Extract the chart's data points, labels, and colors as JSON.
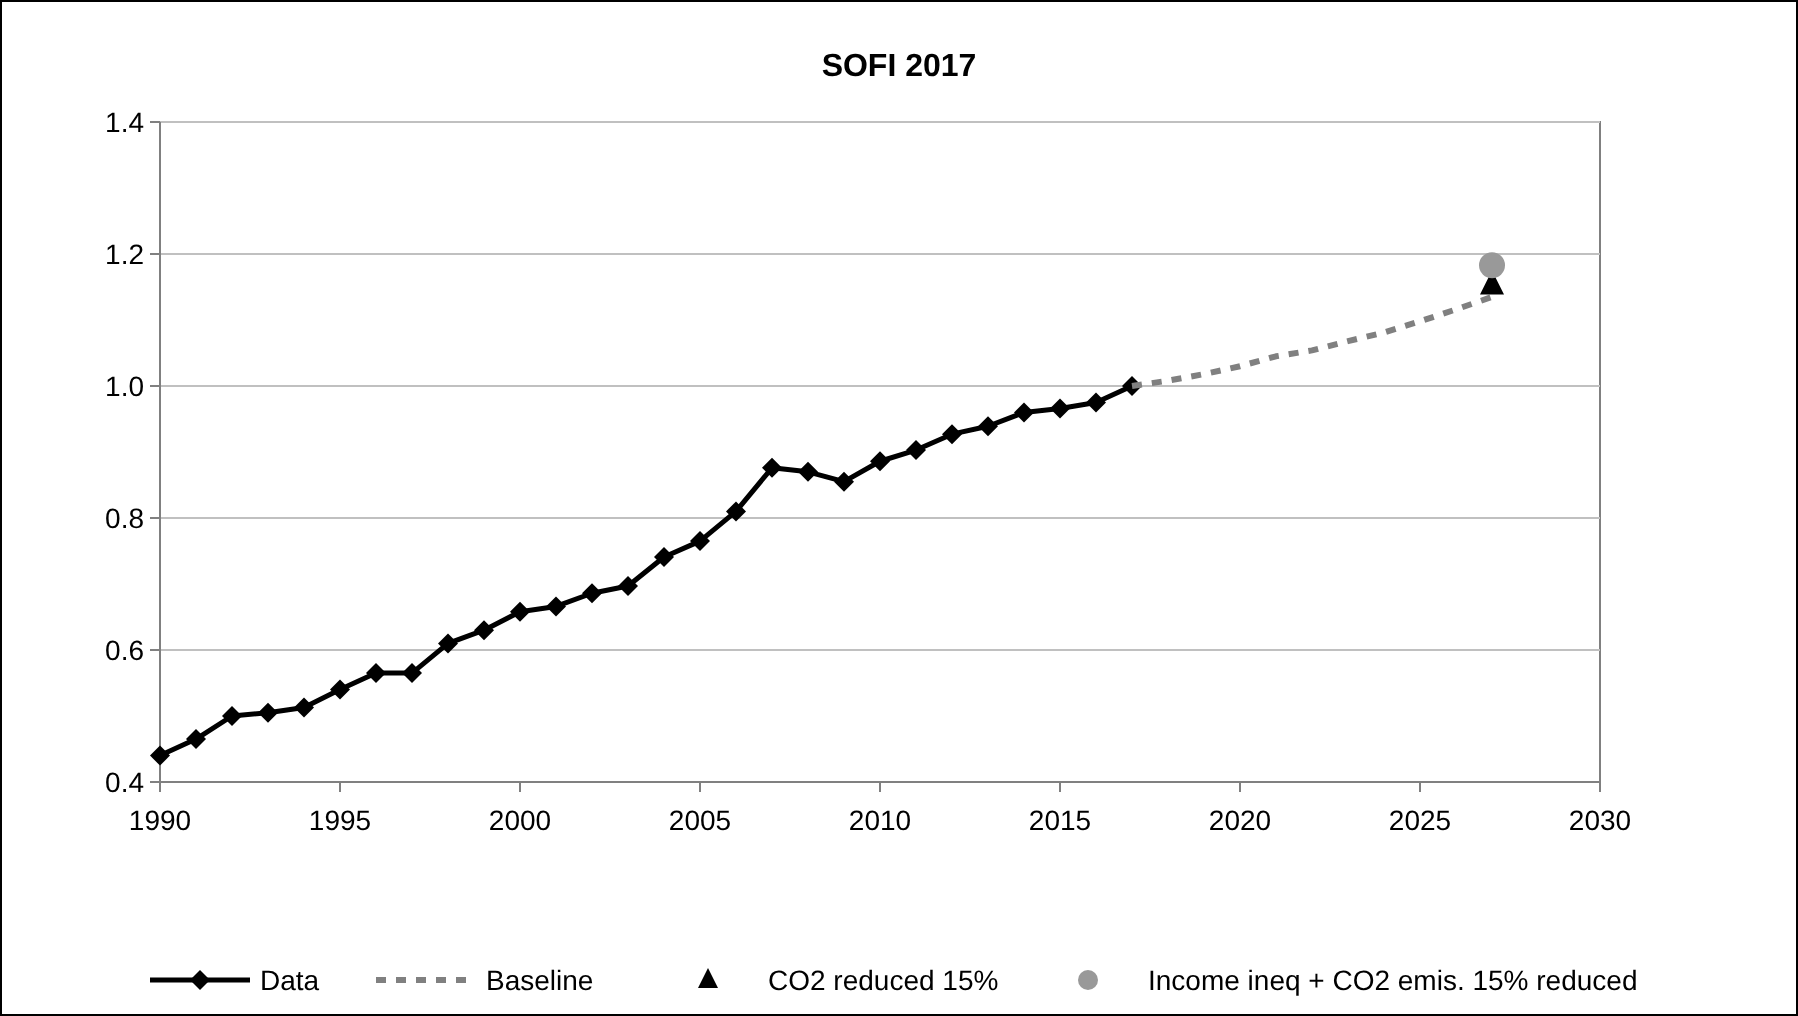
{
  "chart_data": {
    "type": "line",
    "title": "SOFI 2017",
    "xlim": [
      1990,
      2030
    ],
    "xticks": [
      1990,
      1995,
      2000,
      2005,
      2010,
      2015,
      2020,
      2025,
      2030
    ],
    "ylim": [
      0.4,
      1.4
    ],
    "yticks": [
      {
        "value": 0.4,
        "label": "0.4"
      },
      {
        "value": 0.6,
        "label": "0.6"
      },
      {
        "value": 0.8,
        "label": "0.8"
      },
      {
        "value": 1.0,
        "label": "1.0"
      },
      {
        "value": 1.2,
        "label": "1.2"
      },
      {
        "value": 1.4,
        "label": "1.4"
      }
    ],
    "grid": "y",
    "legend": "bottom",
    "series": [
      {
        "name": "Data",
        "color": "#000000",
        "marker": "diamond",
        "line_style": "solid",
        "x": [
          1990,
          1991,
          1992,
          1993,
          1994,
          1995,
          1996,
          1997,
          1998,
          1999,
          2000,
          2001,
          2002,
          2003,
          2004,
          2005,
          2006,
          2007,
          2008,
          2009,
          2010,
          2011,
          2012,
          2013,
          2014,
          2015,
          2016,
          2017
        ],
        "values": [
          0.44,
          0.465,
          0.5,
          0.505,
          0.513,
          0.54,
          0.565,
          0.565,
          0.61,
          0.63,
          0.658,
          0.666,
          0.686,
          0.697,
          0.741,
          0.765,
          0.81,
          0.876,
          0.87,
          0.855,
          0.886,
          0.903,
          0.927,
          0.939,
          0.96,
          0.966,
          0.975,
          1.0
        ]
      },
      {
        "name": "Baseline",
        "color": "#808080",
        "marker": "none",
        "line_style": "dashed",
        "x": [
          2017,
          2018,
          2019,
          2020,
          2021,
          2022,
          2023,
          2024,
          2025,
          2026,
          2027
        ],
        "values": [
          1.0,
          1.008,
          1.018,
          1.03,
          1.045,
          1.054,
          1.068,
          1.081,
          1.098,
          1.116,
          1.135
        ]
      },
      {
        "name": "CO2 reduced 15%",
        "type": "scatter",
        "color": "#000000",
        "marker": "triangle",
        "x": [
          2027
        ],
        "values": [
          1.153
        ]
      },
      {
        "name": "Income ineq + CO2 emis. 15% reduced",
        "type": "scatter",
        "color": "#999999",
        "marker": "circle",
        "x": [
          2027
        ],
        "values": [
          1.183
        ]
      }
    ]
  }
}
